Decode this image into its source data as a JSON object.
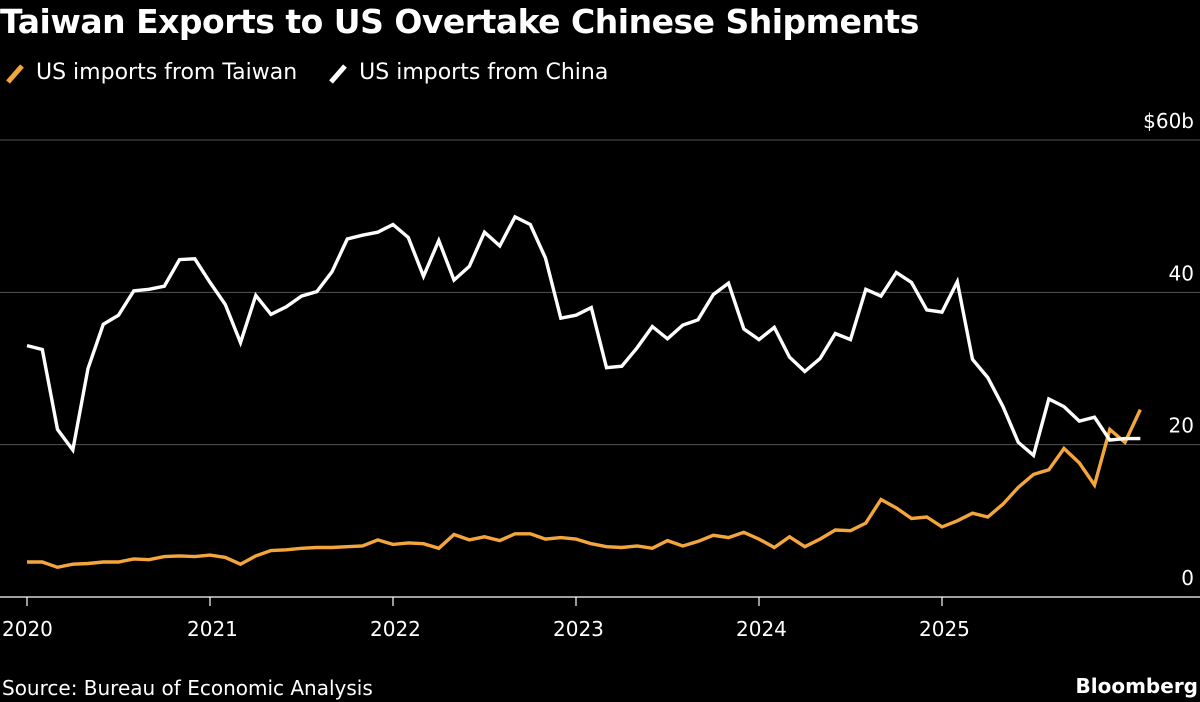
{
  "title": "Taiwan Exports to US Overtake Chinese Shipments",
  "source": "Source: Bureau of Economic Analysis",
  "brand": "Bloomberg",
  "chart_data": {
    "type": "line",
    "x_start": "2020-01",
    "x_ticks": [
      "2020",
      "2021",
      "2022",
      "2023",
      "2024",
      "2025"
    ],
    "y_ticks": [
      "0",
      "20",
      "40",
      "$60b"
    ],
    "y_tick_values": [
      0,
      20,
      40,
      60
    ],
    "ylim": [
      0,
      60
    ],
    "grid": true,
    "legend_position": "top-left",
    "series": [
      {
        "name": "US imports from Taiwan",
        "color": "#f4a63d",
        "values": [
          4.6,
          4.6,
          3.9,
          4.3,
          4.4,
          4.6,
          4.6,
          5.0,
          4.9,
          5.3,
          5.4,
          5.3,
          5.5,
          5.2,
          4.3,
          5.4,
          6.1,
          6.2,
          6.4,
          6.5,
          6.5,
          6.6,
          6.7,
          7.5,
          6.9,
          7.1,
          7.0,
          6.4,
          8.2,
          7.5,
          7.9,
          7.4,
          8.3,
          8.3,
          7.6,
          7.8,
          7.6,
          7.0,
          6.6,
          6.5,
          6.7,
          6.4,
          7.4,
          6.7,
          7.3,
          8.1,
          7.8,
          8.5,
          7.6,
          6.5,
          7.9,
          6.6,
          7.6,
          8.8,
          8.7,
          9.7,
          12.8,
          11.7,
          10.3,
          10.5,
          9.2,
          10.0,
          11.0,
          10.5,
          12.2,
          14.4,
          16.1,
          16.7,
          19.5,
          17.6,
          14.7,
          22.0,
          20.3,
          24.6
        ]
      },
      {
        "name": "US imports from China",
        "color": "#ffffff",
        "values": [
          33.0,
          32.5,
          22.0,
          19.3,
          30.0,
          35.8,
          37.0,
          40.2,
          40.4,
          40.8,
          44.3,
          44.4,
          41.3,
          38.4,
          33.4,
          39.6,
          37.1,
          38.1,
          39.5,
          40.1,
          42.7,
          47.0,
          47.5,
          47.9,
          48.9,
          47.2,
          42.1,
          46.8,
          41.6,
          43.4,
          47.9,
          46.1,
          49.9,
          48.9,
          44.5,
          36.6,
          37.0,
          38.0,
          30.1,
          30.3,
          32.7,
          35.5,
          33.9,
          35.7,
          36.4,
          39.7,
          41.2,
          35.2,
          33.8,
          35.4,
          31.5,
          29.6,
          31.3,
          34.6,
          33.8,
          40.4,
          39.5,
          42.6,
          41.3,
          37.7,
          37.4,
          41.4,
          31.2,
          28.8,
          25.0,
          20.3,
          18.6,
          26.0,
          25.0,
          23.1,
          23.6,
          20.6,
          20.8,
          20.8
        ]
      }
    ]
  }
}
